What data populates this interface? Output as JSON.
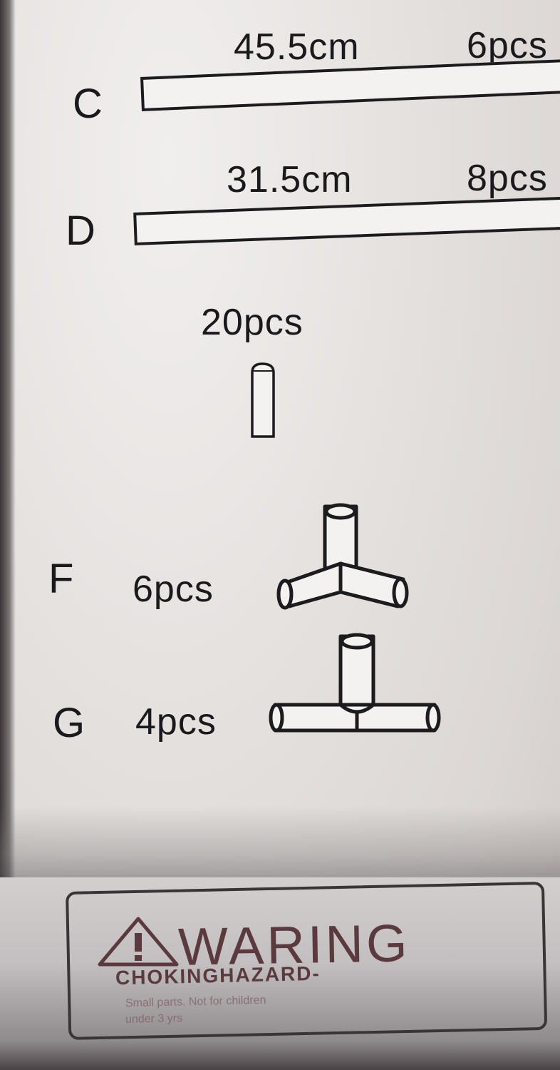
{
  "parts": {
    "c": {
      "letter": "C",
      "length": "45.5cm",
      "qty": "6pcs"
    },
    "d": {
      "letter": "D",
      "length": "31.5cm",
      "qty": "8pcs"
    },
    "e": {
      "qty": "20pcs"
    },
    "f": {
      "letter": "F",
      "qty": "6pcs"
    },
    "g": {
      "letter": "G",
      "qty": "4pcs"
    }
  },
  "warning": {
    "title": "WARING",
    "subtitle": "CHOKINGHAZARD-",
    "fine_print_1": "Small parts. Not for children",
    "fine_print_2": "under 3 yrs",
    "icon": "warning-triangle-icon"
  },
  "colors": {
    "ink": "#1a1a1c",
    "paper": "#e6e2e0",
    "warning_ink": "#5a3a3f"
  }
}
